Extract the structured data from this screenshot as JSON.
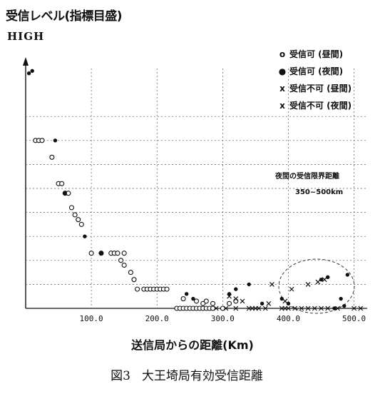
{
  "chart_data": {
    "type": "scatter",
    "title": "",
    "ylabel": "受信レベル(指標目盛)",
    "y_high_label": "HIGH",
    "xlabel": "送信局からの距離(Km)",
    "xlim": [
      0,
      520
    ],
    "ylim": [
      0,
      10
    ],
    "grid": true,
    "x_ticks": [
      {
        "value": 100,
        "label": "100.0"
      },
      {
        "value": 200,
        "label": "200.0"
      },
      {
        "value": 300,
        "label": "300.0"
      },
      {
        "value": 400,
        "label": "400.0"
      },
      {
        "value": 500,
        "label": "500.0"
      }
    ],
    "y_grid_levels": [
      1,
      2,
      3,
      4,
      5,
      6,
      7,
      8
    ],
    "legend": [
      {
        "symbol": "o",
        "label": "受信可 (昼間)"
      },
      {
        "symbol": "●",
        "label": "受信可 (夜間)"
      },
      {
        "symbol": "x",
        "label": "受信不可 (昼間)"
      },
      {
        "symbol": "x",
        "label": "受信不可 (夜間)"
      }
    ],
    "annotation": {
      "title": "夜間の受信限界距離",
      "range": "350~500km"
    },
    "series": [
      {
        "name": "受信可 (昼間)",
        "marker": "open-circle",
        "points": [
          [
            15,
            7.0
          ],
          [
            20,
            7.0
          ],
          [
            25,
            7.0
          ],
          [
            40,
            6.3
          ],
          [
            50,
            5.2
          ],
          [
            55,
            5.2
          ],
          [
            60,
            4.8
          ],
          [
            65,
            4.8
          ],
          [
            70,
            4.2
          ],
          [
            75,
            3.9
          ],
          [
            80,
            3.7
          ],
          [
            85,
            3.5
          ],
          [
            100,
            2.3
          ],
          [
            115,
            2.3
          ],
          [
            130,
            2.3
          ],
          [
            135,
            2.3
          ],
          [
            140,
            2.3
          ],
          [
            145,
            2.0
          ],
          [
            150,
            2.3
          ],
          [
            150,
            1.8
          ],
          [
            160,
            1.5
          ],
          [
            165,
            1.2
          ],
          [
            170,
            0.8
          ],
          [
            180,
            0.8
          ],
          [
            185,
            0.8
          ],
          [
            190,
            0.8
          ],
          [
            195,
            0.8
          ],
          [
            200,
            0.8
          ],
          [
            205,
            0.8
          ],
          [
            210,
            0.8
          ],
          [
            215,
            0.8
          ],
          [
            230,
            0.0
          ],
          [
            235,
            0.0
          ],
          [
            240,
            0.0
          ],
          [
            245,
            0.0
          ],
          [
            250,
            0.0
          ],
          [
            255,
            0.0
          ],
          [
            260,
            0.0
          ],
          [
            265,
            0.0
          ],
          [
            270,
            0.0
          ],
          [
            275,
            0.0
          ],
          [
            280,
            0.0
          ],
          [
            285,
            0.0
          ],
          [
            240,
            0.4
          ],
          [
            260,
            0.3
          ],
          [
            270,
            0.2
          ],
          [
            275,
            0.3
          ],
          [
            285,
            0.2
          ],
          [
            300,
            0.0
          ],
          [
            310,
            0.2
          ],
          [
            320,
            0.3
          ]
        ]
      },
      {
        "name": "受信可 (夜間)",
        "marker": "filled-circle",
        "points": [
          [
            5,
            9.8
          ],
          [
            10,
            9.9
          ],
          [
            45,
            7.0
          ],
          [
            60,
            4.8
          ],
          [
            90,
            3.0
          ],
          [
            115,
            2.3
          ],
          [
            245,
            0.6
          ],
          [
            255,
            0.4
          ],
          [
            310,
            0.6
          ],
          [
            320,
            0.8
          ],
          [
            340,
            1.0
          ],
          [
            360,
            0.2
          ],
          [
            390,
            0.4
          ],
          [
            400,
            0.2
          ],
          [
            450,
            1.2
          ],
          [
            460,
            1.3
          ],
          [
            485,
            0.1
          ],
          [
            490,
            1.4
          ],
          [
            470,
            0.0
          ],
          [
            480,
            0.4
          ]
        ]
      },
      {
        "name": "受信不可 (昼間)",
        "marker": "x",
        "points": [
          [
            290,
            0.0
          ],
          [
            305,
            0.0
          ],
          [
            320,
            0.0
          ],
          [
            330,
            0.3
          ],
          [
            340,
            0.0
          ],
          [
            345,
            0.0
          ],
          [
            350,
            0.0
          ],
          [
            355,
            0.0
          ],
          [
            365,
            0.0
          ],
          [
            370,
            0.2
          ],
          [
            310,
            0.5
          ],
          [
            320,
            0.4
          ],
          [
            375,
            1.0
          ],
          [
            390,
            0.0
          ],
          [
            395,
            0.0
          ],
          [
            400,
            0.0
          ],
          [
            410,
            0.0
          ],
          [
            420,
            0.0
          ],
          [
            430,
            0.0
          ],
          [
            440,
            0.0
          ],
          [
            450,
            0.0
          ],
          [
            460,
            0.0
          ],
          [
            475,
            0.0
          ],
          [
            500,
            0.0
          ],
          [
            510,
            0.0
          ]
        ]
      },
      {
        "name": "受信不可 (夜間)",
        "marker": "x",
        "points": [
          [
            395,
            0.3
          ],
          [
            405,
            0.8
          ],
          [
            430,
            1.0
          ],
          [
            445,
            1.1
          ],
          [
            455,
            1.2
          ]
        ]
      }
    ]
  },
  "caption": {
    "figure_number": "図3",
    "title": "大王埼局有効受信距離"
  }
}
